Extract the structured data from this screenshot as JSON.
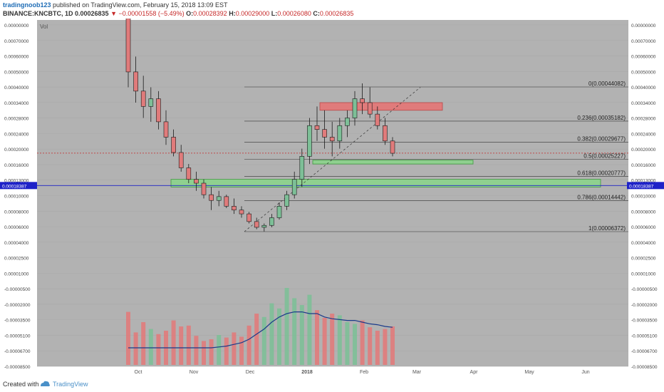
{
  "header": {
    "author": "tradingnoob123",
    "published": "published on TradingView.com, February 15, 2018 13:09 EST",
    "symbol": "BINANCE:KNCBTC, 1D",
    "last": "0.00026835",
    "arrow": "▼",
    "change": "−0.00001558 (−5.49%)",
    "o_label": "O:",
    "o_value": "0.00028392",
    "h_label": "H:",
    "h_value": "0.00029000",
    "l_label": "L:",
    "l_value": "0.00026080",
    "c_label": "C:",
    "c_value": "0.00026835"
  },
  "footer": {
    "created": "Created with",
    "brand": "TradingView"
  },
  "colors": {
    "background": "#b2b2b2",
    "up": "#7dbf97",
    "down": "#e07b7b",
    "resistance_zone": "#e07b7b",
    "support_zone": "#8fd08f",
    "price_line": "#c62828",
    "level_marker": "#1e22c8",
    "vol_ma": "#1a3a8a"
  },
  "chart_data": {
    "type": "candlestick",
    "vol_label": "Vol",
    "x_ticks": [
      "Oct",
      "Nov",
      "Dec",
      "2018",
      "Feb",
      "Mar",
      "Apr",
      "May",
      "Jun"
    ],
    "price_axis_labels": [
      "0.00000000",
      "0.00070000",
      "0.00060000",
      "0.00050000",
      "0.00040000",
      "0.00034000",
      "0.00028000",
      "0.00024000",
      "0.00020000",
      "0.00016000",
      "0.00013000",
      "0.00010000",
      "0.00008000",
      "0.00006000",
      "0.00004000",
      "0.00002500",
      "0.00001000",
      "-0.00000500",
      "-0.00002000",
      "-0.00003500",
      "-0.00005100",
      "-0.00006700",
      "-0.00008500"
    ],
    "current_price": 0.00026835,
    "marked_level": "0.00018387",
    "fib_levels": [
      {
        "label": "0(0.00044082)",
        "value": 0.00044082
      },
      {
        "label": "0.236(0.00035182)",
        "value": 0.00035182
      },
      {
        "label": "0.382(0.00029677)",
        "value": 0.00029677
      },
      {
        "label": "0.5(0.00025227)",
        "value": 0.00025227
      },
      {
        "label": "0.618(0.00020777)",
        "value": 0.00020777
      },
      {
        "label": "0.786(0.00014442)",
        "value": 0.00014442
      },
      {
        "label": "1(0.00006372)",
        "value": 6.372e-05
      }
    ],
    "zones": [
      {
        "type": "resistance",
        "from": 0.00038,
        "to": 0.0004
      },
      {
        "type": "support",
        "from": 0.00024,
        "to": 0.00025
      },
      {
        "type": "support",
        "from": 0.00018,
        "to": 0.0002
      }
    ],
    "candles": [
      {
        "o": 0.00065,
        "h": 0.0007,
        "l": 0.00044,
        "c": 0.00048
      },
      {
        "o": 0.00048,
        "h": 0.00052,
        "l": 0.0004,
        "c": 0.00043
      },
      {
        "o": 0.00043,
        "h": 0.00047,
        "l": 0.00036,
        "c": 0.00039
      },
      {
        "o": 0.00039,
        "h": 0.00044,
        "l": 0.00035,
        "c": 0.00041
      },
      {
        "o": 0.00041,
        "h": 0.00043,
        "l": 0.00033,
        "c": 0.00035
      },
      {
        "o": 0.00035,
        "h": 0.00038,
        "l": 0.00029,
        "c": 0.00031
      },
      {
        "o": 0.00031,
        "h": 0.00033,
        "l": 0.00026,
        "c": 0.00027
      },
      {
        "o": 0.00027,
        "h": 0.00029,
        "l": 0.00022,
        "c": 0.00023
      },
      {
        "o": 0.00023,
        "h": 0.00024,
        "l": 0.00019,
        "c": 0.0002
      },
      {
        "o": 0.0002,
        "h": 0.00022,
        "l": 0.00017,
        "c": 0.00019
      },
      {
        "o": 0.00019,
        "h": 0.0002,
        "l": 0.00015,
        "c": 0.00016
      },
      {
        "o": 0.00016,
        "h": 0.00018,
        "l": 0.00012,
        "c": 0.000145
      },
      {
        "o": 0.000145,
        "h": 0.00017,
        "l": 0.00013,
        "c": 0.000155
      },
      {
        "o": 0.000155,
        "h": 0.00016,
        "l": 0.000125,
        "c": 0.00013
      },
      {
        "o": 0.00013,
        "h": 0.00015,
        "l": 0.00011,
        "c": 0.00012
      },
      {
        "o": 0.00012,
        "h": 0.00013,
        "l": 0.0001,
        "c": 0.00011
      },
      {
        "o": 0.00011,
        "h": 0.000115,
        "l": 8.5e-05,
        "c": 9e-05
      },
      {
        "o": 9e-05,
        "h": 0.0001,
        "l": 7e-05,
        "c": 7.5e-05
      },
      {
        "o": 7.5e-05,
        "h": 8.5e-05,
        "l": 6.4e-05,
        "c": 8e-05
      },
      {
        "o": 8e-05,
        "h": 0.00011,
        "l": 7.5e-05,
        "c": 0.0001
      },
      {
        "o": 0.0001,
        "h": 0.00014,
        "l": 9.5e-05,
        "c": 0.00013
      },
      {
        "o": 0.00013,
        "h": 0.00017,
        "l": 0.00012,
        "c": 0.00016
      },
      {
        "o": 0.00016,
        "h": 0.00022,
        "l": 0.00015,
        "c": 0.0002
      },
      {
        "o": 0.0002,
        "h": 0.00028,
        "l": 0.00018,
        "c": 0.00026
      },
      {
        "o": 0.00026,
        "h": 0.00036,
        "l": 0.00024,
        "c": 0.00034
      },
      {
        "o": 0.00034,
        "h": 0.00039,
        "l": 0.0003,
        "c": 0.00033
      },
      {
        "o": 0.00033,
        "h": 0.00038,
        "l": 0.00028,
        "c": 0.00031
      },
      {
        "o": 0.00031,
        "h": 0.00035,
        "l": 0.00026,
        "c": 0.0003
      },
      {
        "o": 0.0003,
        "h": 0.00036,
        "l": 0.00028,
        "c": 0.00034
      },
      {
        "o": 0.00034,
        "h": 0.00038,
        "l": 0.00031,
        "c": 0.00036
      },
      {
        "o": 0.00036,
        "h": 0.00043,
        "l": 0.00034,
        "c": 0.00041
      },
      {
        "o": 0.00041,
        "h": 0.00045,
        "l": 0.00037,
        "c": 0.0004
      },
      {
        "o": 0.0004,
        "h": 0.00044,
        "l": 0.00036,
        "c": 0.00037
      },
      {
        "o": 0.00037,
        "h": 0.00039,
        "l": 0.00033,
        "c": 0.00034
      },
      {
        "o": 0.00034,
        "h": 0.00036,
        "l": 0.00029,
        "c": 0.0003
      },
      {
        "o": 0.0003,
        "h": 0.00031,
        "l": 0.00026,
        "c": 0.000268
      }
    ],
    "volume": [
      0.62,
      0.38,
      0.5,
      0.42,
      0.36,
      0.4,
      0.52,
      0.45,
      0.46,
      0.34,
      0.28,
      0.3,
      0.35,
      0.32,
      0.38,
      0.33,
      0.46,
      0.6,
      0.56,
      0.72,
      0.66,
      0.9,
      0.78,
      0.7,
      0.82,
      0.64,
      0.55,
      0.6,
      0.58,
      0.5,
      0.48,
      0.52,
      0.44,
      0.4,
      0.42,
      0.45
    ],
    "volume_ma": [
      0.2,
      0.2,
      0.2,
      0.2,
      0.2,
      0.2,
      0.2,
      0.2,
      0.2,
      0.2,
      0.2,
      0.2,
      0.21,
      0.22,
      0.24,
      0.26,
      0.3,
      0.36,
      0.42,
      0.5,
      0.56,
      0.6,
      0.62,
      0.62,
      0.6,
      0.6,
      0.56,
      0.54,
      0.53,
      0.52,
      0.52,
      0.5,
      0.48,
      0.47,
      0.45,
      0.44
    ]
  }
}
